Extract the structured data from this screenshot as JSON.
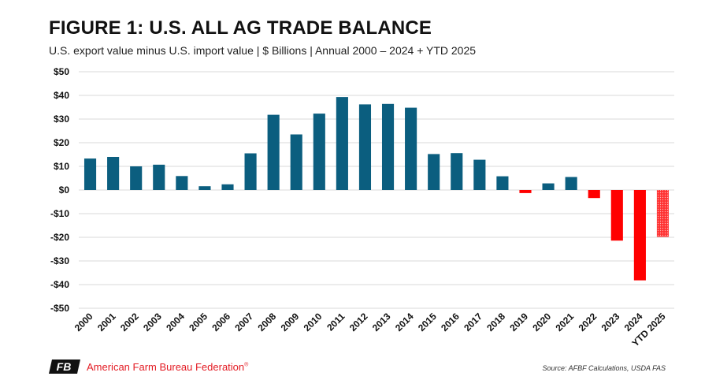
{
  "chart_data": {
    "type": "bar",
    "title": "FIGURE 1: U.S. ALL AG TRADE BALANCE",
    "subtitle": "U.S. export value minus U.S. import value | $ Billions | Annual 2000 – 2024 + YTD 2025",
    "xlabel": "",
    "ylabel": "",
    "ylim": [
      -50,
      50
    ],
    "yticks": [
      50,
      40,
      30,
      20,
      10,
      0,
      -10,
      -20,
      -30,
      -40,
      -50
    ],
    "ytick_labels": [
      "$50",
      "$40",
      "$30",
      "$20",
      "$10",
      "$0",
      "-$10",
      "-$20",
      "-$30",
      "-$40",
      "-$50"
    ],
    "categories": [
      "2000",
      "2001",
      "2002",
      "2003",
      "2004",
      "2005",
      "2006",
      "2007",
      "2008",
      "2009",
      "2010",
      "2011",
      "2012",
      "2013",
      "2014",
      "2015",
      "2016",
      "2017",
      "2018",
      "2019",
      "2020",
      "2021",
      "2022",
      "2023",
      "2024",
      "YTD 2025"
    ],
    "values": [
      13.3,
      14.0,
      10.0,
      10.7,
      5.9,
      1.6,
      2.4,
      15.5,
      31.8,
      23.5,
      32.3,
      39.3,
      36.2,
      36.4,
      34.8,
      15.2,
      15.6,
      12.8,
      5.8,
      -1.3,
      2.8,
      5.5,
      -3.4,
      -21.4,
      -38.2,
      -19.8
    ],
    "grid": true,
    "colors": {
      "positive": "#0b5e7f",
      "negative": "#ff0000"
    },
    "hatched_categories": [
      "YTD 2025"
    ]
  },
  "footer": {
    "logo_text": "American Farm Bureau Federation",
    "logo_mark": "FB",
    "trademark": "®",
    "source": "Source: AFBF Calculations, USDA FAS"
  }
}
